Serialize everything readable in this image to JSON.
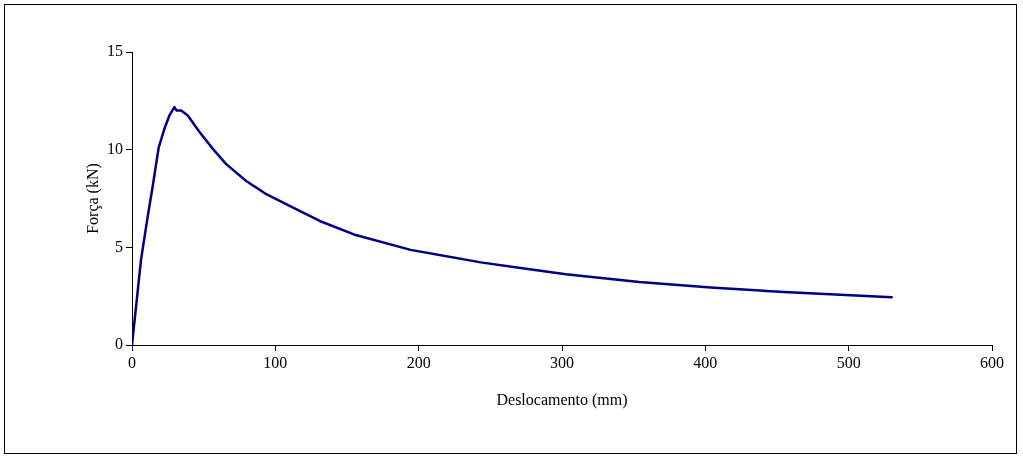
{
  "chart_data": {
    "type": "line",
    "xlabel": "Deslocamento (mm)",
    "ylabel": "Força (kN)",
    "xlim": [
      0,
      600
    ],
    "xticks": [
      0,
      100,
      200,
      300,
      400,
      500,
      600
    ],
    "ylim": [
      0,
      15
    ],
    "yticks": [
      0,
      5,
      10,
      15
    ],
    "grid": false,
    "legend": false,
    "marker": "none",
    "line_style": "solid",
    "series": [
      {
        "color": "#000080",
        "x": [
          0,
          6.3,
          11,
          14.5,
          18.6,
          22.6,
          26.1,
          29.6,
          31.2,
          34.3,
          38.9,
          47.1,
          56.4,
          65.7,
          79.7,
          93.7,
          112.4,
          131,
          154.8,
          194.4,
          243.4,
          302.7,
          353.9,
          403.7,
          455,
          504.9,
          530
        ],
        "values": [
          0,
          4.37,
          6.6,
          8.15,
          10.1,
          11.07,
          11.75,
          12.18,
          12.0,
          12.0,
          11.75,
          10.9,
          10.04,
          9.26,
          8.4,
          7.72,
          7.03,
          6.35,
          5.66,
          4.87,
          4.23,
          3.62,
          3.23,
          2.94,
          2.71,
          2.53,
          2.45
        ]
      }
    ]
  }
}
